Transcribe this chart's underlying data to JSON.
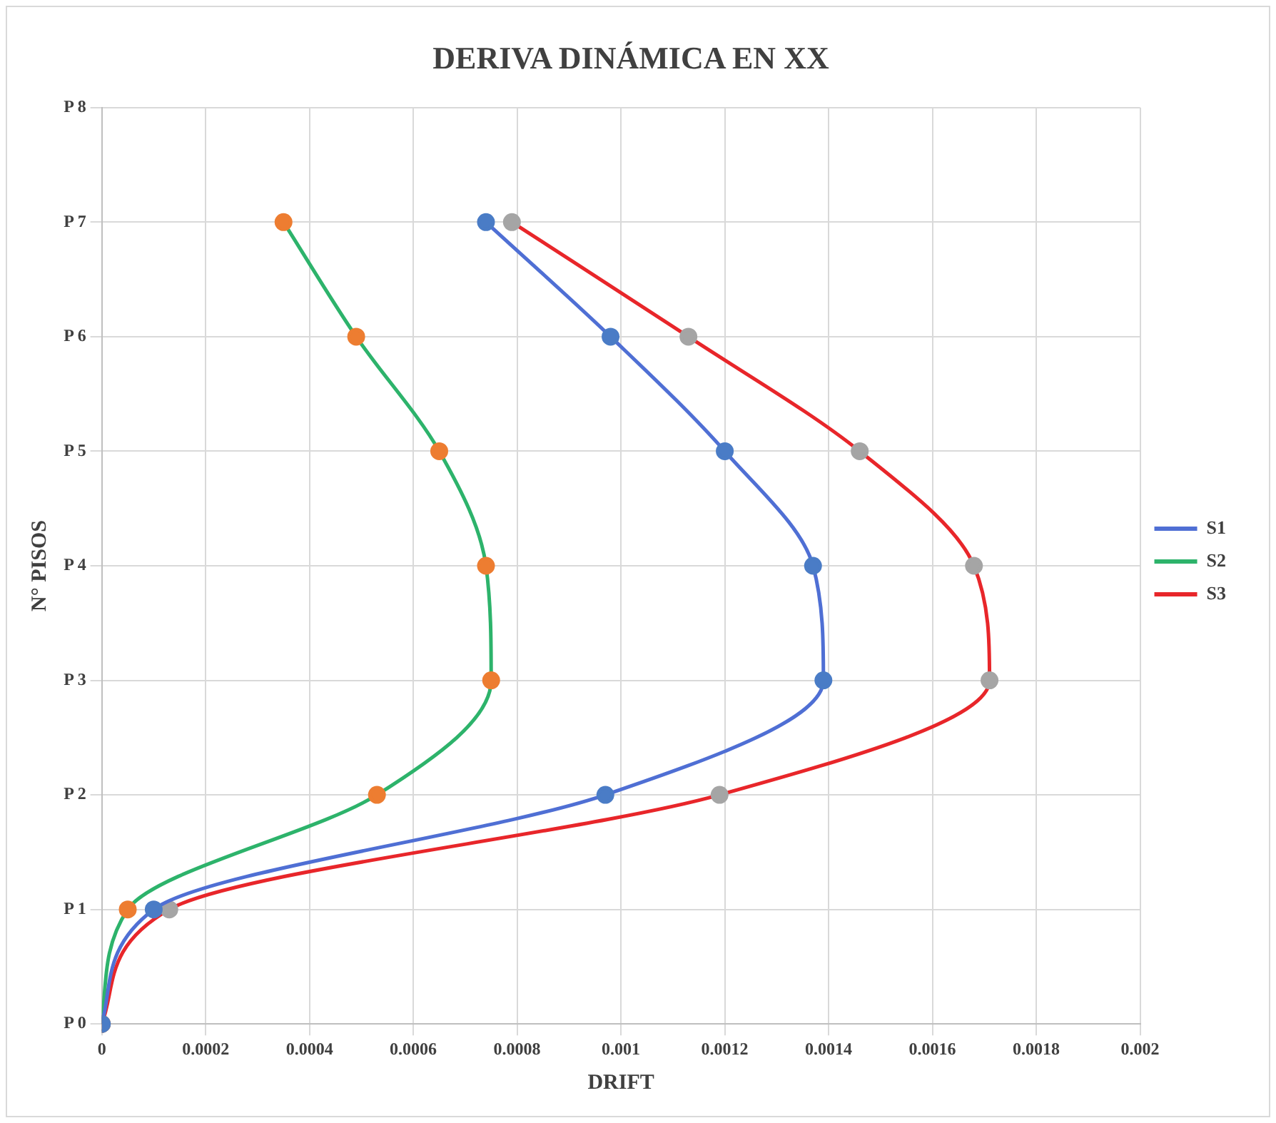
{
  "chart_data": {
    "type": "line",
    "title": "DERIVA DINÁMICA EN XX",
    "xlabel": "DRIFT",
    "ylabel": "N° PISOS",
    "orientation": "horizontal",
    "categories": [
      "P 8",
      "P 7",
      "P 6",
      "P 5",
      "P 4",
      "P 3",
      "P 2",
      "P 1",
      "P 0"
    ],
    "series": [
      {
        "name": "S1",
        "color": "#4f6fd4",
        "colors": [
          "#4a7cc6",
          "#4a7cc6",
          "#4a7cc6",
          "#4a7cc6",
          "#4a7cc6",
          "#4a7cc6",
          "#4a7cc6",
          "#4a7cc6",
          "#4a7cc6"
        ],
        "values": [
          null,
          0.00074,
          0.00098,
          0.0012,
          0.00137,
          0.00139,
          0.00097,
          0.0001,
          0
        ]
      },
      {
        "name": "S2",
        "color": "#2db36b",
        "colors": [
          "#ed7d31",
          "#ed7d31",
          "#ed7d31",
          "#ed7d31",
          "#ed7d31",
          "#ed7d31",
          "#ed7d31",
          "#ed7d31",
          "#ed7d31"
        ],
        "values": [
          null,
          0.00035,
          0.00049,
          0.00065,
          0.00074,
          0.00075,
          0.00053,
          5e-05,
          0
        ]
      },
      {
        "name": "S3",
        "color": "#e8262a",
        "colors": [
          "#a5a5a5",
          "#a5a5a5",
          "#a5a5a5",
          "#a5a5a5",
          "#a5a5a5",
          "#a5a5a5",
          "#a5a5a5",
          "#a5a5a5",
          "#a5a5a5"
        ],
        "values": [
          null,
          0.00079,
          0.00113,
          0.00146,
          0.00168,
          0.00171,
          0.00119,
          0.00013,
          0
        ]
      }
    ],
    "xlim": [
      0,
      0.002
    ],
    "xticks": [
      0,
      0.0002,
      0.0004,
      0.0006,
      0.0008,
      0.001,
      0.0012,
      0.0014,
      0.0016,
      0.0018,
      0.002
    ],
    "grid": true,
    "legend": "right",
    "marker": "circle",
    "line_style": "solid"
  }
}
